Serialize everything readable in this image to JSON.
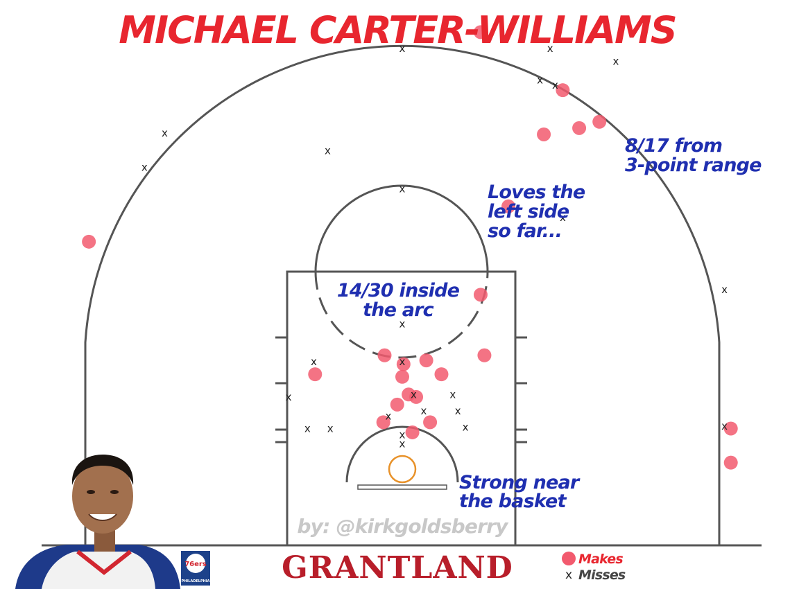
{
  "title": "MICHAEL CARTER-WILLIAMS",
  "credit": "by: @kirkgoldsberry",
  "brand": "GRANTLAND",
  "team_logo": {
    "text": "76ers",
    "subtext": "PHILADELPHIA"
  },
  "annotations": [
    {
      "lines": [
        "8/17 from",
        "3-point range"
      ]
    },
    {
      "lines": [
        "Loves the",
        "left side",
        "so far..."
      ]
    },
    {
      "lines": [
        "14/30 inside",
        "the arc"
      ]
    },
    {
      "lines": [
        "Strong near",
        "the basket"
      ]
    }
  ],
  "legend": {
    "makes": "Makes",
    "misses": "Misses",
    "miss_marker": "x"
  },
  "colors": {
    "title": "#e8262f",
    "annotation": "#1f2fb0",
    "make": "#f25a6e",
    "miss": "#222222",
    "court": "#555555",
    "rim": "#e8922a",
    "credit": "#c8c8c8",
    "brand": "#b81e2a",
    "legend_makes": "#e8262f",
    "legend_misses": "#444444"
  },
  "chart_data": {
    "type": "scatter",
    "title": "MICHAEL CARTER-WILLIAMS",
    "x_unit": "feet from basket (+ = right of basket)",
    "y_unit": "feet from baseline",
    "xlim": [
      -25,
      25
    ],
    "ylim": [
      0,
      39
    ],
    "grid": false,
    "legend_placement": "bottom-right",
    "series": [
      {
        "name": "Makes",
        "marker": "circle",
        "points": [
          [
            6.2,
            35.6
          ],
          [
            12.7,
            31.0
          ],
          [
            11.2,
            27.5
          ],
          [
            15.6,
            28.5
          ],
          [
            14.0,
            28.0
          ],
          [
            8.4,
            21.8
          ],
          [
            -24.8,
            19.0
          ],
          [
            6.2,
            14.8
          ],
          [
            6.5,
            10.0
          ],
          [
            -6.9,
            8.5
          ],
          [
            -1.4,
            10.0
          ],
          [
            0.1,
            9.3
          ],
          [
            1.9,
            9.6
          ],
          [
            3.1,
            8.5
          ],
          [
            0.0,
            8.3
          ],
          [
            0.5,
            6.9
          ],
          [
            1.1,
            6.7
          ],
          [
            -0.4,
            6.1
          ],
          [
            -1.5,
            4.7
          ],
          [
            2.2,
            4.7
          ],
          [
            0.8,
            3.9
          ],
          [
            26.0,
            4.2
          ],
          [
            26.0,
            1.5
          ]
        ]
      },
      {
        "name": "Misses",
        "marker": "x",
        "points": [
          [
            0.0,
            34.3
          ],
          [
            11.7,
            34.3
          ],
          [
            16.9,
            33.3
          ],
          [
            -18.8,
            27.6
          ],
          [
            -5.9,
            26.2
          ],
          [
            -20.4,
            24.9
          ],
          [
            0.0,
            23.2
          ],
          [
            10.9,
            31.8
          ],
          [
            12.1,
            31.4
          ],
          [
            12.7,
            20.9
          ],
          [
            25.5,
            15.2
          ],
          [
            0.0,
            12.5
          ],
          [
            -7.0,
            9.5
          ],
          [
            0.0,
            9.5
          ],
          [
            -9.0,
            6.7
          ],
          [
            0.9,
            6.9
          ],
          [
            4.0,
            6.9
          ],
          [
            4.4,
            5.6
          ],
          [
            1.7,
            5.6
          ],
          [
            -1.1,
            5.2
          ],
          [
            5.0,
            4.3
          ],
          [
            -7.5,
            4.2
          ],
          [
            -5.7,
            4.2
          ],
          [
            0.0,
            3.7
          ],
          [
            0.0,
            3.0
          ],
          [
            25.5,
            4.4
          ]
        ]
      }
    ]
  }
}
